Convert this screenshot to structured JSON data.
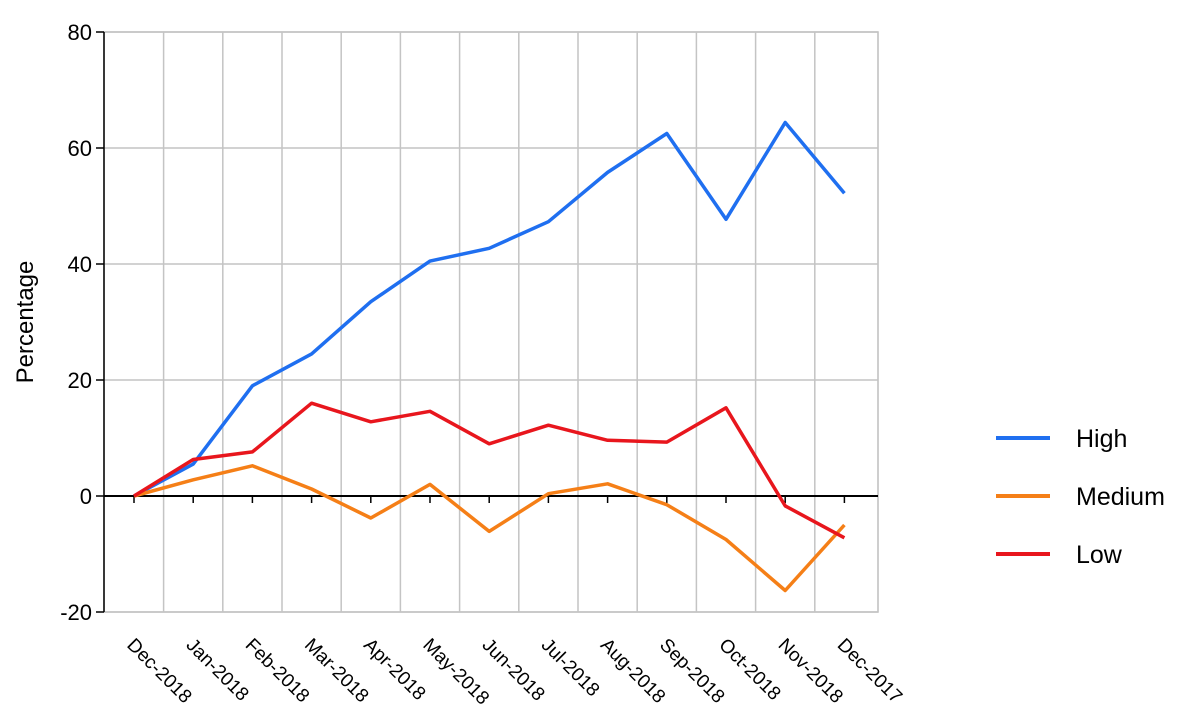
{
  "chart_data": {
    "type": "line",
    "title": "",
    "xlabel": "",
    "ylabel": "Percentage",
    "categories": [
      "Dec-2018",
      "Jan-2018",
      "Feb-2018",
      "Mar-2018",
      "Apr-2018",
      "May-2018",
      "Jun-2018",
      "Jul-2018",
      "Aug-2018",
      "Sep-2018",
      "Oct-2018",
      "Nov-2018",
      "Dec-2017"
    ],
    "ylim": [
      -20,
      80
    ],
    "yticks": [
      -20,
      0,
      20,
      40,
      60,
      80
    ],
    "grid": true,
    "legend_position": "right",
    "series": [
      {
        "name": "High",
        "color": "#1f6ff0",
        "values": [
          0,
          5.5,
          19,
          24.5,
          33.5,
          40.5,
          42.7,
          47.3,
          55.8,
          62.5,
          47.7,
          64.4,
          52.2
        ]
      },
      {
        "name": "Medium",
        "color": "#f57f17",
        "values": [
          0,
          2.8,
          5.2,
          1.2,
          -3.8,
          2.0,
          -6.1,
          0.4,
          2.1,
          -1.5,
          -7.5,
          -16.3,
          -5.0
        ]
      },
      {
        "name": "Low",
        "color": "#e8161d",
        "values": [
          0,
          6.3,
          7.6,
          16.0,
          12.8,
          14.6,
          9.0,
          12.2,
          9.6,
          9.3,
          15.2,
          -1.7,
          -7.2
        ]
      }
    ]
  }
}
